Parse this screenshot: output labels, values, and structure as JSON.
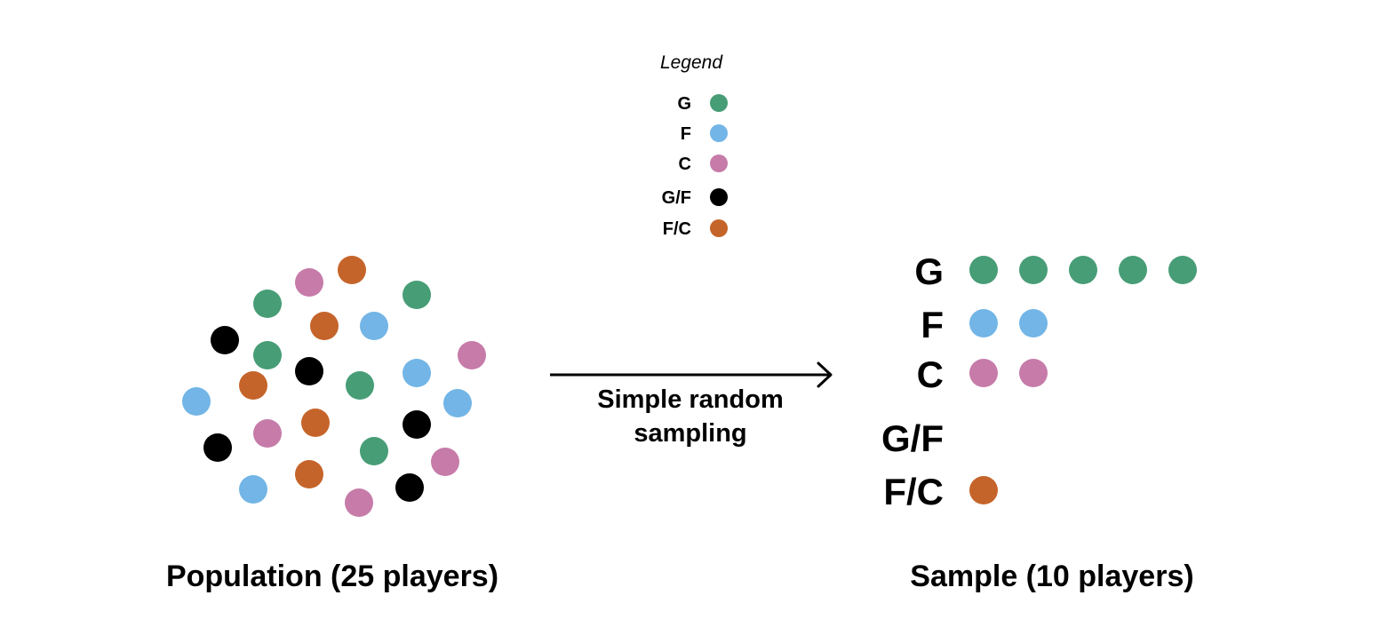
{
  "colors": {
    "G": "#479d76",
    "F": "#72b5e6",
    "C": "#c67ba9",
    "G/F": "#000000",
    "F/C": "#c5642a",
    "arrow": "#000000"
  },
  "legend": {
    "title": "Legend",
    "items": [
      {
        "label": "G",
        "color": "#479d76"
      },
      {
        "label": "F",
        "color": "#72b5e6"
      },
      {
        "label": "C",
        "color": "#c67ba9"
      },
      {
        "label": "G/F",
        "color": "#000000"
      },
      {
        "label": "F/C",
        "color": "#c5642a"
      }
    ]
  },
  "population": {
    "caption": "Population (25 players)",
    "players": [
      "C",
      "F/C",
      "G",
      "G",
      "F/C",
      "F",
      "G/F",
      "G",
      "G/F",
      "F",
      "C",
      "F/C",
      "G",
      "F",
      "F",
      "C",
      "F/C",
      "G/F",
      "G/F",
      "G",
      "C",
      "F/C",
      "F",
      "G/F",
      "C"
    ]
  },
  "process": {
    "label_line1": "Simple random",
    "label_line2": "sampling"
  },
  "sample": {
    "caption": "Sample (10 players)",
    "rows": [
      {
        "label": "G",
        "count": 5
      },
      {
        "label": "F",
        "count": 2
      },
      {
        "label": "C",
        "count": 2
      },
      {
        "label": "G/F",
        "count": 0
      },
      {
        "label": "F/C",
        "count": 1
      }
    ]
  }
}
